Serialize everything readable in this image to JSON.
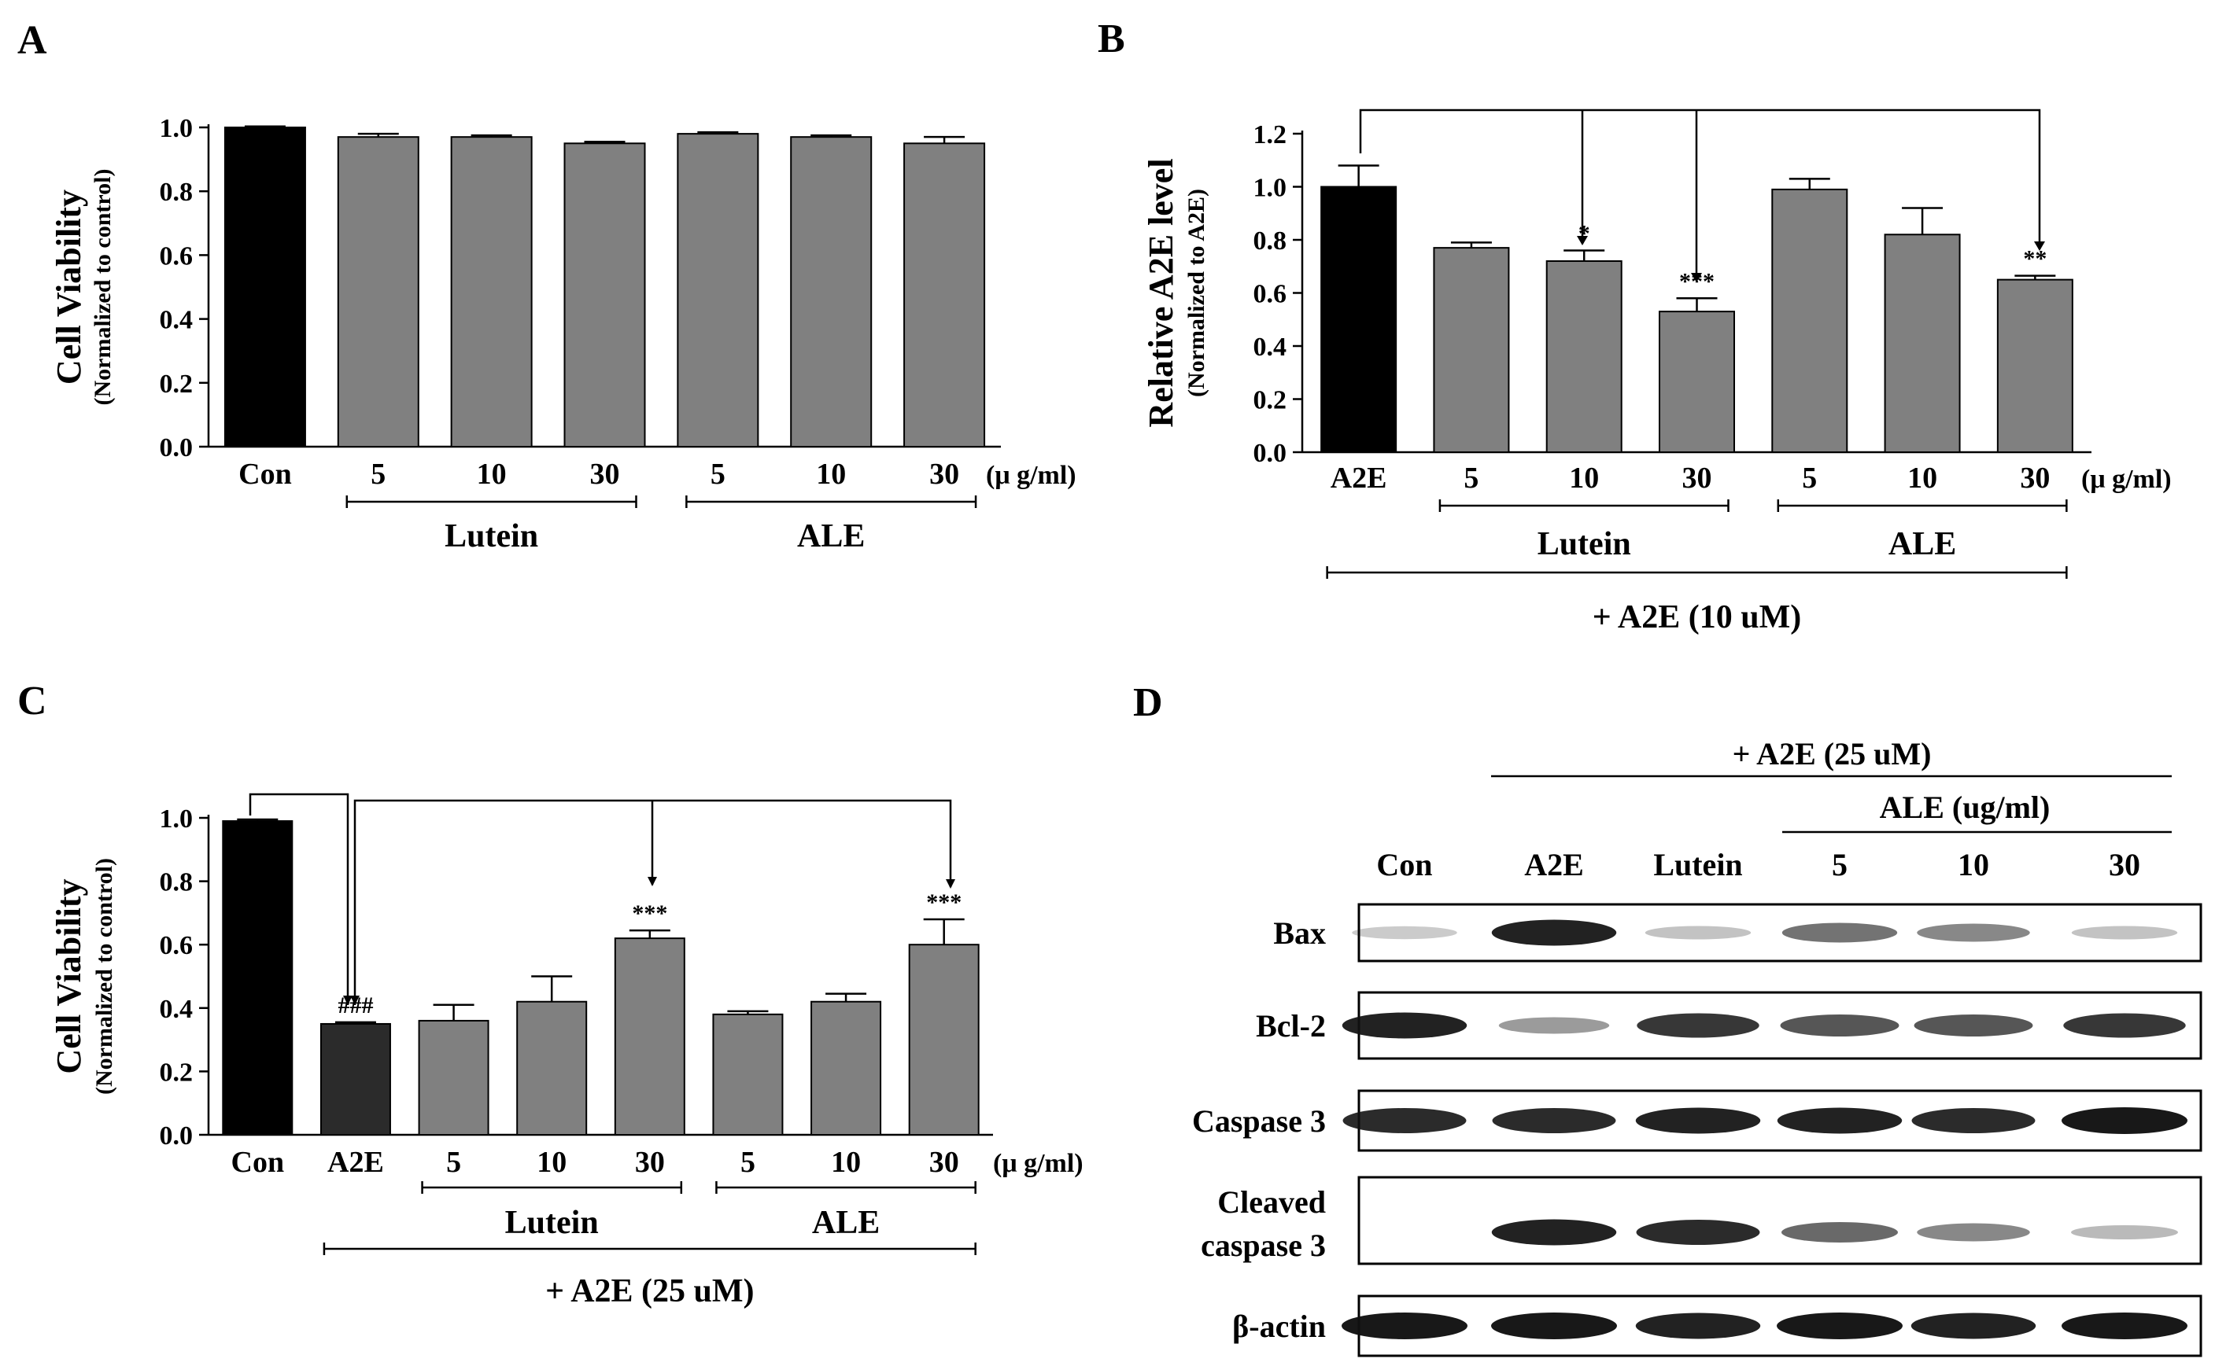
{
  "colors": {
    "control": "#000000",
    "a2e_c": "#2b2b2b",
    "treated": "#808080",
    "blot_band": "#111111"
  },
  "panels": {
    "A": {
      "letter": "A"
    },
    "B": {
      "letter": "B"
    },
    "C": {
      "letter": "C"
    },
    "D": {
      "letter": "D",
      "treatment_label": "+ A2E (25 uM)",
      "ale_label": "ALE (ug/ml)",
      "lanes": [
        "Con",
        "A2E",
        "Lutein",
        "5",
        "10",
        "30"
      ],
      "rows": [
        {
          "label": "Bax",
          "intensity": [
            0.12,
            0.95,
            0.15,
            0.55,
            0.45,
            0.15
          ]
        },
        {
          "label": "Bcl-2",
          "intensity": [
            0.95,
            0.35,
            0.85,
            0.7,
            0.7,
            0.85
          ]
        },
        {
          "label": "Caspase 3",
          "intensity": [
            0.9,
            0.9,
            0.95,
            0.95,
            0.9,
            1.0
          ]
        },
        {
          "label": "Cleaved\ncaspase 3",
          "label_lines": [
            "Cleaved",
            "caspase 3"
          ],
          "intensity": [
            0.0,
            0.95,
            0.9,
            0.6,
            0.45,
            0.2
          ]
        },
        {
          "label": "β-actin",
          "intensity": [
            1.0,
            1.0,
            0.95,
            1.0,
            0.95,
            1.0
          ]
        }
      ]
    }
  },
  "chart_data": [
    {
      "panel": "A",
      "type": "bar",
      "ylabel": "Cell Viability",
      "ylabel_sub": "(Normalized to control)",
      "ylim": [
        0,
        1.0
      ],
      "yticks": [
        "0.0",
        "0.2",
        "0.4",
        "0.6",
        "0.8",
        "1.0"
      ],
      "categories": [
        "Con",
        "5",
        "10",
        "30",
        "5",
        "10",
        "30"
      ],
      "unit": "(μ g/ml)",
      "values": [
        1.0,
        0.97,
        0.97,
        0.95,
        0.98,
        0.97,
        0.95
      ],
      "errors": [
        0.003,
        0.01,
        0.005,
        0.005,
        0.005,
        0.005,
        0.02
      ],
      "bar_colors": [
        "control",
        "treated",
        "treated",
        "treated",
        "treated",
        "treated",
        "treated"
      ],
      "annotations": [
        "",
        "",
        "",
        "",
        "",
        "",
        ""
      ],
      "groups": [
        {
          "label": "Lutein",
          "from": 1,
          "to": 3
        },
        {
          "label": "ALE",
          "from": 4,
          "to": 6
        }
      ]
    },
    {
      "panel": "B",
      "type": "bar",
      "ylabel": "Relative A2E level",
      "ylabel_sub": "(Normalized to A2E)",
      "ylim": [
        0,
        1.2
      ],
      "yticks": [
        "0.0",
        "0.2",
        "0.4",
        "0.6",
        "0.8",
        "1.0",
        "1.2"
      ],
      "categories": [
        "A2E",
        "5",
        "10",
        "30",
        "5",
        "10",
        "30"
      ],
      "unit": "(μ g/ml)",
      "values": [
        1.0,
        0.77,
        0.72,
        0.53,
        0.99,
        0.82,
        0.65
      ],
      "errors": [
        0.08,
        0.02,
        0.04,
        0.05,
        0.04,
        0.1,
        0.015
      ],
      "bar_colors": [
        "control",
        "treated",
        "treated",
        "treated",
        "treated",
        "treated",
        "treated"
      ],
      "annotations": [
        "",
        "",
        "*",
        "***",
        "",
        "",
        "**"
      ],
      "groups": [
        {
          "label": "Lutein",
          "from": 1,
          "to": 3
        },
        {
          "label": "ALE",
          "from": 4,
          "to": 6
        }
      ],
      "treatment": {
        "label": "+ A2E (10 uM)",
        "from": 0,
        "to": 6
      }
    },
    {
      "panel": "C",
      "type": "bar",
      "ylabel": "Cell Viability",
      "ylabel_sub": "(Normalized to control)",
      "ylim": [
        0,
        1.0
      ],
      "yticks": [
        "0.0",
        "0.2",
        "0.4",
        "0.6",
        "0.8",
        "1.0"
      ],
      "categories": [
        "Con",
        "A2E",
        "5",
        "10",
        "30",
        "5",
        "10",
        "30"
      ],
      "unit": "(μ g/ml)",
      "values": [
        0.99,
        0.35,
        0.36,
        0.42,
        0.62,
        0.38,
        0.42,
        0.6
      ],
      "errors": [
        0.005,
        0.005,
        0.05,
        0.08,
        0.025,
        0.01,
        0.025,
        0.08
      ],
      "bar_colors": [
        "control",
        "a2e_c",
        "treated",
        "treated",
        "treated",
        "treated",
        "treated",
        "treated"
      ],
      "annotations": [
        "",
        "###",
        "",
        "",
        "***",
        "",
        "",
        "***"
      ],
      "groups": [
        {
          "label": "Lutein",
          "from": 2,
          "to": 4
        },
        {
          "label": "ALE",
          "from": 5,
          "to": 7
        }
      ],
      "treatment": {
        "label": "+ A2E (25 uM)",
        "from": 1,
        "to": 7
      }
    }
  ]
}
